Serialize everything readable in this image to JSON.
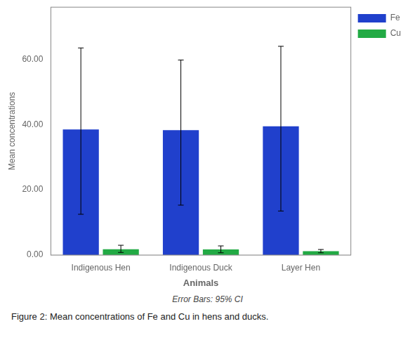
{
  "chart_data": {
    "type": "bar",
    "categories": [
      "Indigenous Hen",
      "Indigenous Duck",
      "Layer Hen"
    ],
    "series": [
      {
        "name": "Fe",
        "color": "#2040cc",
        "values": [
          38.5,
          38.3,
          39.5
        ],
        "error_up": [
          25.0,
          21.5,
          24.5
        ],
        "error_down": [
          26.0,
          23.0,
          26.0
        ]
      },
      {
        "name": "Cu",
        "color": "#22aa44",
        "values": [
          1.8,
          1.7,
          1.2
        ],
        "error_up": [
          1.2,
          1.1,
          0.5
        ],
        "error_down": [
          1.0,
          1.0,
          0.5
        ]
      }
    ],
    "xlabel": "Animals",
    "ylabel": "Mean concentrations",
    "ylim": [
      0,
      76
    ],
    "yticks": [
      {
        "value": 0,
        "label": "0.00"
      },
      {
        "value": 20,
        "label": "20.00"
      },
      {
        "value": 40,
        "label": "40.00"
      },
      {
        "value": 60,
        "label": "60.00"
      }
    ],
    "grid": false,
    "legend": "right",
    "annotations": [
      "Error Bars: 95% CI",
      "Figure 2: Mean concentrations of Fe and Cu in hens and ducks."
    ]
  }
}
